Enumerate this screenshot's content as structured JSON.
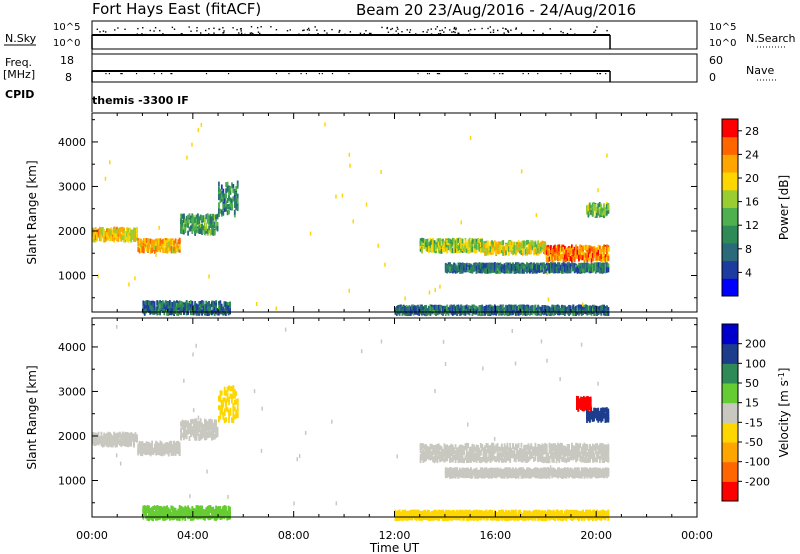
{
  "header": {
    "title": "Fort Hays East (fitACF)",
    "subtitle": "Beam 20 23/Aug/2016 - 24/Aug/2016"
  },
  "strip_labels": {
    "nsky": "N.Sky",
    "nsearch": "N.Search",
    "freq": "Freq.",
    "mhz": "[MHz]",
    "nave": "Nave",
    "cpid": "CPID",
    "cpid_value": "themis -3300 IF",
    "nsky_hi": "10^5",
    "nsky_lo": "10^0",
    "nsearch_hi": "10^5",
    "nsearch_lo": "10^0",
    "freq_hi": "18",
    "freq_lo": "8",
    "nave_hi": "60",
    "nave_lo": "0"
  },
  "chart_data": [
    {
      "type": "heatmap",
      "title": "",
      "xlabel": "Time UT",
      "ylabel": "Slant Range [km]",
      "xlim": [
        "00:00",
        "24:00"
      ],
      "ylim": [
        180,
        4650
      ],
      "x_ticks": [
        "00:00",
        "04:00",
        "08:00",
        "12:00",
        "16:00",
        "20:00",
        "00:00"
      ],
      "y_ticks": [
        1000,
        2000,
        3000,
        4000
      ],
      "colorbar": {
        "label": "Power [dB]",
        "ticks": [
          4,
          8,
          12,
          16,
          20,
          24,
          28
        ],
        "range": [
          0,
          30
        ],
        "colors": [
          "#0000ff",
          "#1e3ca0",
          "#2a6a7a",
          "#2e8b57",
          "#4fb04f",
          "#9acd32",
          "#ffd700",
          "#ffa500",
          "#ff6600",
          "#ff0000"
        ]
      },
      "bands": [
        {
          "t0": 0.0,
          "t1": 1.8,
          "r0": 1850,
          "r1": 2100,
          "level": 20
        },
        {
          "t0": 1.8,
          "t1": 3.5,
          "r0": 1600,
          "r1": 1850,
          "level": 22
        },
        {
          "t0": 3.5,
          "t1": 5.0,
          "r0": 2000,
          "r1": 2400,
          "level": 12
        },
        {
          "t0": 5.0,
          "t1": 5.8,
          "r0": 2400,
          "r1": 3150,
          "level": 10
        },
        {
          "t0": 13.0,
          "t1": 15.5,
          "r0": 1600,
          "r1": 1850,
          "level": 16
        },
        {
          "t0": 15.5,
          "t1": 18.0,
          "r0": 1550,
          "r1": 1800,
          "level": 18
        },
        {
          "t0": 18.0,
          "t1": 20.5,
          "r0": 1400,
          "r1": 1700,
          "level": 24
        },
        {
          "t0": 19.6,
          "t1": 20.5,
          "r0": 2400,
          "r1": 2650,
          "level": 14
        },
        {
          "t0": 14.0,
          "t1": 20.5,
          "r0": 1150,
          "r1": 1300,
          "level": 8
        },
        {
          "t0": 2.0,
          "t1": 5.5,
          "r0": 200,
          "r1": 450,
          "level": 8
        },
        {
          "t0": 12.0,
          "t1": 20.5,
          "r0": 200,
          "r1": 350,
          "level": 8
        }
      ]
    },
    {
      "type": "heatmap",
      "title": "",
      "xlabel": "Time UT",
      "ylabel": "Slant Range [km]",
      "xlim": [
        "00:00",
        "24:00"
      ],
      "ylim": [
        180,
        4650
      ],
      "x_ticks": [
        "00:00",
        "04:00",
        "08:00",
        "12:00",
        "16:00",
        "20:00",
        "00:00"
      ],
      "y_ticks": [
        1000,
        2000,
        3000,
        4000
      ],
      "colorbar": {
        "label": "Velocity [m s^-1]",
        "ticks": [
          200,
          100,
          50,
          15,
          -15,
          -50,
          -100,
          -200
        ],
        "range": [
          -250,
          250
        ],
        "colors": [
          "#ff0000",
          "#ff6600",
          "#ffa500",
          "#ffd700",
          "#c8c8c0",
          "#66cc33",
          "#2e8b57",
          "#1e3c8c",
          "#0000cc"
        ]
      },
      "bands": [
        {
          "t0": 0.0,
          "t1": 1.8,
          "r0": 1850,
          "r1": 2100,
          "level": 0
        },
        {
          "t0": 1.8,
          "t1": 3.5,
          "r0": 1650,
          "r1": 1900,
          "level": 0
        },
        {
          "t0": 3.5,
          "t1": 5.0,
          "r0": 2000,
          "r1": 2400,
          "level": 0
        },
        {
          "t0": 5.0,
          "t1": 5.8,
          "r0": 2400,
          "r1": 3150,
          "level": -40
        },
        {
          "t0": 13.0,
          "t1": 20.5,
          "r0": 1500,
          "r1": 1850,
          "level": 0
        },
        {
          "t0": 14.0,
          "t1": 20.5,
          "r0": 1150,
          "r1": 1300,
          "level": 0
        },
        {
          "t0": 19.6,
          "t1": 20.5,
          "r0": 2400,
          "r1": 2650,
          "level": 180
        },
        {
          "t0": 19.2,
          "t1": 19.8,
          "r0": 2650,
          "r1": 2900,
          "level": -200
        },
        {
          "t0": 2.0,
          "t1": 5.5,
          "r0": 200,
          "r1": 450,
          "level": 40
        },
        {
          "t0": 12.0,
          "t1": 20.5,
          "r0": 200,
          "r1": 350,
          "level": -40
        }
      ]
    }
  ]
}
